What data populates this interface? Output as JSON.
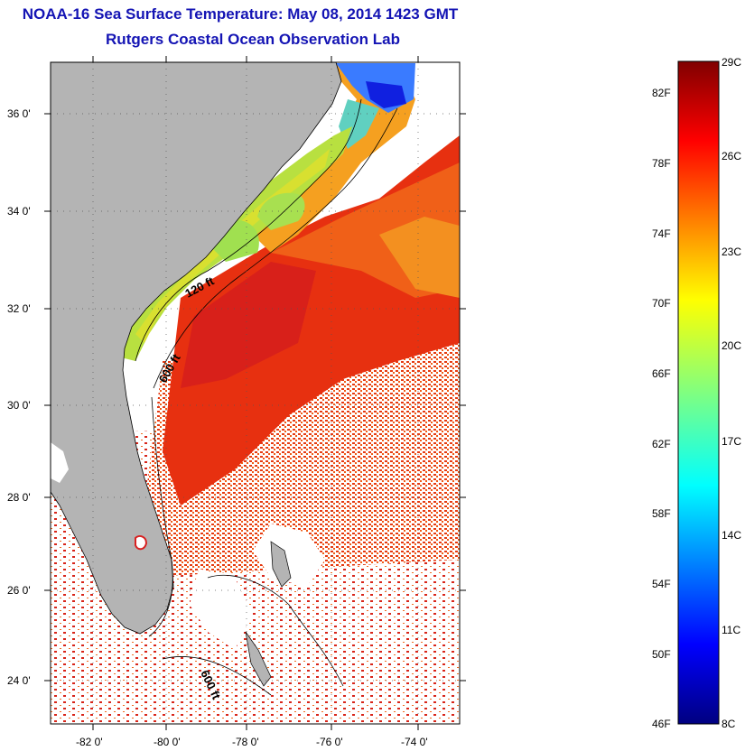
{
  "header": {
    "title": "NOAA-16 Sea Surface Temperature:  May 08, 2014 1423 GMT",
    "subtitle": "Rutgers Coastal Ocean Observation Lab"
  },
  "map": {
    "lat_labels": [
      "36 0'",
      "34 0'",
      "32 0'",
      "30 0'",
      "28 0'",
      "26 0'",
      "24 0'"
    ],
    "lon_labels": [
      "-82 0'",
      "-80 0'",
      "-78 0'",
      "-76 0'",
      "-74 0'"
    ],
    "depth_labels": [
      "120 ft",
      "600 ft",
      "600 ft"
    ],
    "land_color": "#b4b4b4",
    "gridline_style": "dotted"
  },
  "colorbar": {
    "fahrenheit_labels": [
      "82F",
      "78F",
      "74F",
      "70F",
      "66F",
      "62F",
      "58F",
      "54F",
      "50F",
      "46F"
    ],
    "celsius_labels": [
      "29C",
      "26C",
      "23C",
      "20C",
      "17C",
      "14C",
      "11C",
      "8C"
    ],
    "range_c": [
      8,
      29
    ],
    "colormap": "jet"
  }
}
